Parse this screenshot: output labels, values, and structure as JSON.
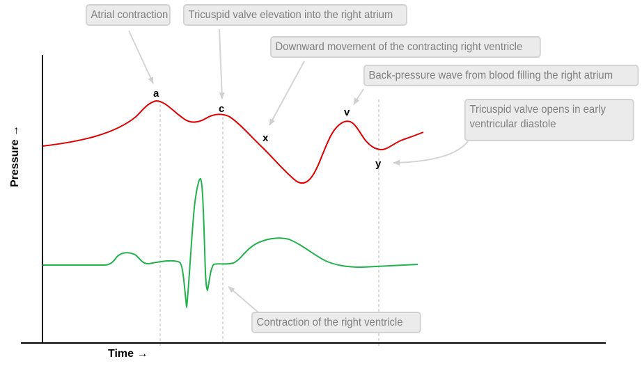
{
  "axes": {
    "y_label": "Pressure →",
    "x_label": "Time →"
  },
  "wave_points": [
    "a",
    "c",
    "x",
    "v",
    "y"
  ],
  "callouts": {
    "atrial_contraction": "Atrial contraction",
    "tricuspid_elevation": "Tricuspid valve elevation into the right atrium",
    "downward_movement": "Downward movement of the contracting right ventricle",
    "back_pressure": "Back-pressure wave from blood filling  the right atrium",
    "tricuspid_opens": "Tricuspid valve opens in early ventricular diastole",
    "ventricle_contraction": "Contraction of the right ventricle"
  },
  "colors": {
    "pressure_curve": "#e00000",
    "ecg_curve": "#22b24c",
    "callout_fill": "#ebebeb",
    "callout_border": "#d2d2d2",
    "callout_text": "#7f7f7f",
    "guide_line": "#bbbbbb"
  }
}
